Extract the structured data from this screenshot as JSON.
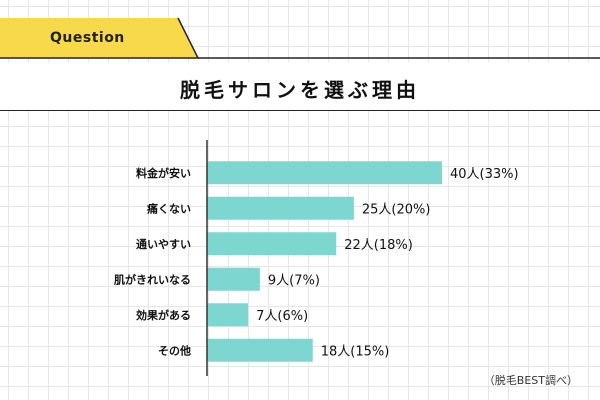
{
  "header": {
    "tag": "Question",
    "title": "脱毛サロンを選ぶ理由"
  },
  "colors": {
    "bar": "#7ed6d1",
    "tag": "#f8d94a",
    "axis": "#333333",
    "text": "#111111"
  },
  "chart_data": {
    "type": "bar",
    "orientation": "horizontal",
    "title": "脱毛サロンを選ぶ理由",
    "categories": [
      "料金が安い",
      "痛くない",
      "通いやすい",
      "肌がきれいなる",
      "効果がある",
      "その他"
    ],
    "values": [
      40,
      25,
      22,
      9,
      7,
      18
    ],
    "percents": [
      33,
      20,
      18,
      7,
      6,
      15
    ],
    "value_labels": [
      "40人(33%)",
      "25人(20%)",
      "22人(18%)",
      "9人(7%)",
      "7人(6%)",
      "18人(15%)"
    ],
    "unit": "人",
    "xlim": [
      0,
      40
    ],
    "xlabel": "",
    "ylabel": ""
  },
  "source": "（脱毛BEST調べ）"
}
